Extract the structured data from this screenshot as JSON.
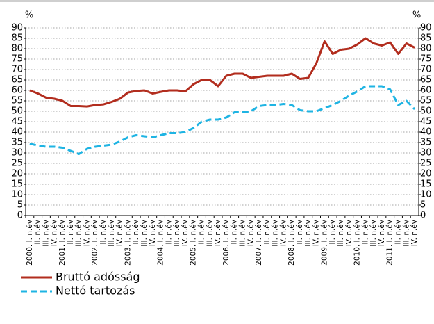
{
  "chart_data": {
    "type": "line",
    "y_label": "%",
    "y2_label": "%",
    "categories": [
      "2000. I. n.év",
      "II. n.év",
      "III. n.év",
      "IV. n.év",
      "2001. I. n.év",
      "II. n.év",
      "III. n.év",
      "IV. n.év",
      "2002. I. n.év",
      "II. n.év",
      "III. n.év",
      "IV. n.év",
      "2003. I. n.év",
      "II. n.év",
      "III. n.év",
      "IV. n.év",
      "2004. I. n.év",
      "II. n.év",
      "III. n.év",
      "IV. n.év",
      "2005. I. n.év",
      "II. n.év",
      "III. n.év",
      "IV. n.év",
      "2006. I. n.év",
      "II. n.év",
      "III. n.év",
      "IV. n.év",
      "2007. I. n.év",
      "II. n.év",
      "III. n.év",
      "IV. n.év",
      "2008. I. n.év",
      "II. n.év",
      "III. n.év",
      "IV. n.év",
      "2009. I. n.év",
      "II. n.év",
      "III. n.év",
      "IV. n.év",
      "2010. I. n.év",
      "II. n.év",
      "III. n.év",
      "IV. n.év",
      "2011. I. n.év",
      "II. n.év",
      "III. n.év",
      "IV. n.év"
    ],
    "series": [
      {
        "name": "Bruttó adósság",
        "color": "#b22d1e",
        "dash": false,
        "values": [
          60,
          58.5,
          56.5,
          56,
          55,
          52.5,
          52.5,
          52.3,
          53,
          53.3,
          54.5,
          56,
          59,
          59.7,
          60,
          58.5,
          59.3,
          60,
          60,
          59.5,
          63,
          65,
          65,
          62,
          67,
          68,
          68,
          66,
          66.5,
          67,
          67,
          67,
          68,
          65.5,
          66,
          73,
          83.5,
          77.5,
          79.5,
          80,
          82,
          85,
          82.5,
          81.5,
          83,
          77.5,
          82.5,
          80.5
        ]
      },
      {
        "name": "Nettó tartozás",
        "color": "#1fb4e3",
        "dash": true,
        "values": [
          34.5,
          33.5,
          33,
          33,
          32.5,
          31,
          29.5,
          32,
          33,
          33.5,
          34,
          35.5,
          37.5,
          38.5,
          38,
          37.5,
          38.5,
          39.5,
          39.5,
          40,
          42,
          45,
          46,
          46,
          47,
          49.5,
          49.5,
          50,
          52.5,
          53,
          53,
          53.5,
          53,
          50.5,
          50,
          50,
          51.5,
          53,
          55,
          57.5,
          59.5,
          62,
          62,
          62,
          60.5,
          53,
          55,
          51
        ]
      }
    ],
    "ylim": [
      0,
      90
    ],
    "yticks": [
      0,
      5,
      10,
      15,
      20,
      25,
      30,
      35,
      40,
      45,
      50,
      55,
      60,
      65,
      70,
      75,
      80,
      85,
      90
    ],
    "y2lim": [
      0,
      90
    ],
    "y2ticks": [
      0,
      5,
      10,
      15,
      20,
      25,
      30,
      35,
      40,
      45,
      50,
      55,
      60,
      65,
      70,
      75,
      80,
      85,
      90
    ],
    "grid": true
  }
}
